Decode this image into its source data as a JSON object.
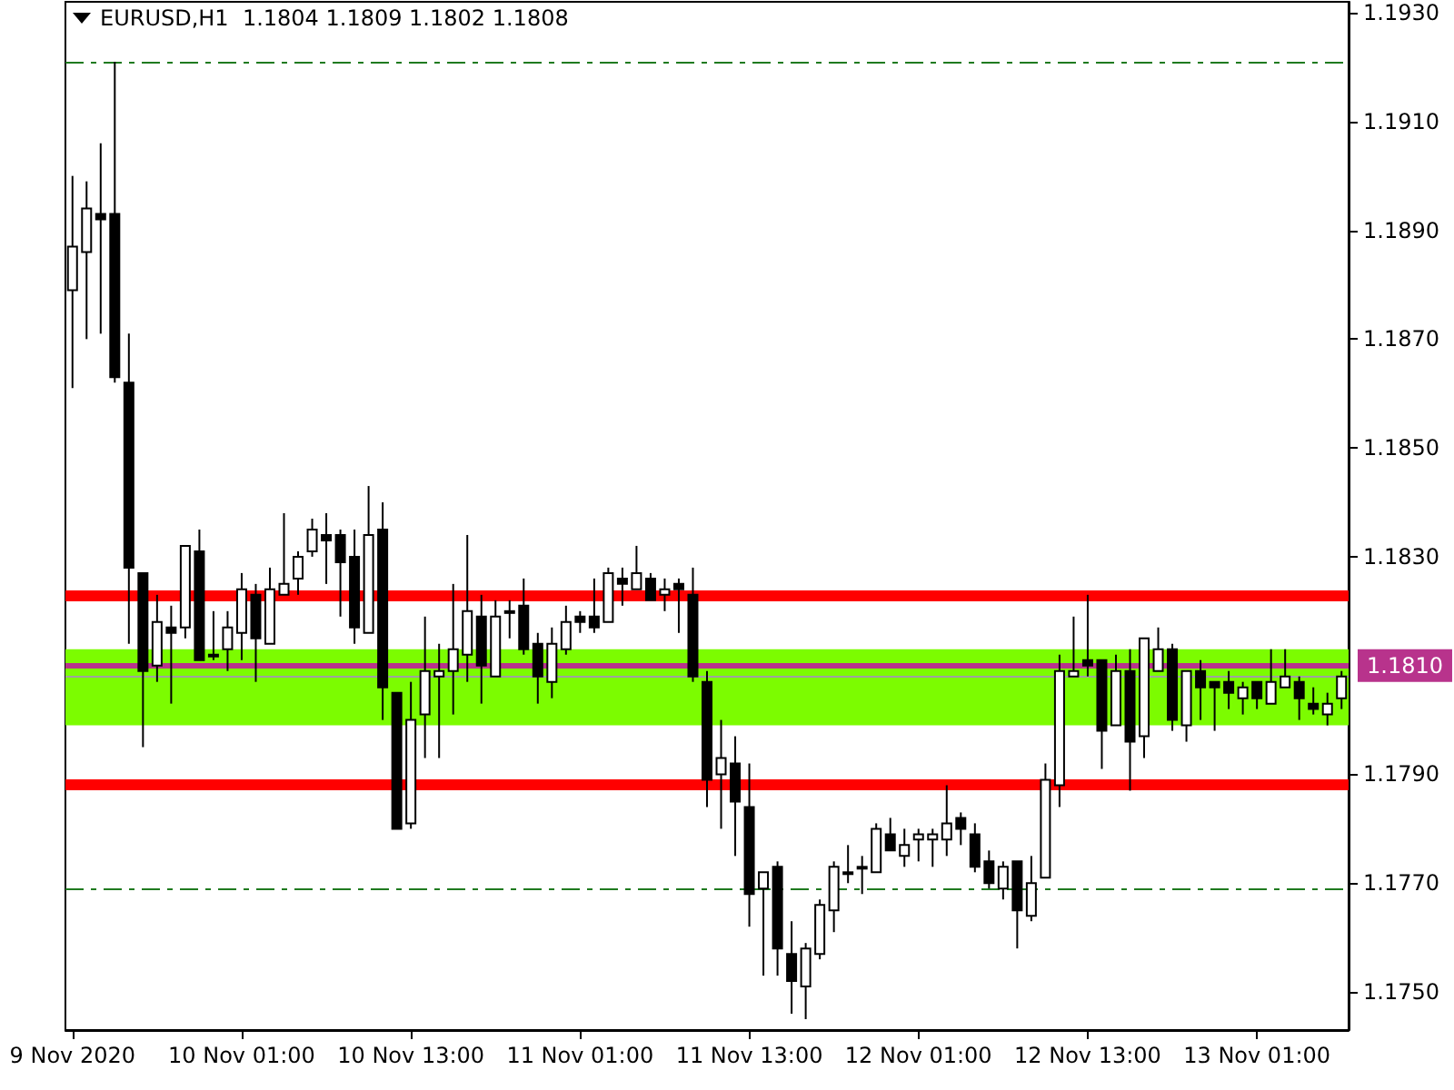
{
  "chart_data": {
    "type": "candlestick",
    "title": "EURUSD,H1  1.1804 1.1809 1.1802 1.1808",
    "color": "#000000",
    "categories": [
      "9 Nov 2020",
      null,
      null,
      null,
      null,
      null,
      null,
      null,
      null,
      null,
      null,
      null,
      "10 Nov 01:00",
      null,
      null,
      null,
      null,
      null,
      null,
      null,
      null,
      null,
      null,
      null,
      "10 Nov 13:00",
      null,
      null,
      null,
      null,
      null,
      null,
      null,
      null,
      null,
      null,
      null,
      "11 Nov 01:00",
      null,
      null,
      null,
      null,
      null,
      null,
      null,
      null,
      null,
      null,
      null,
      "11 Nov 13:00",
      null,
      null,
      null,
      null,
      null,
      null,
      null,
      null,
      null,
      null,
      null,
      "12 Nov 01:00",
      null,
      null,
      null,
      null,
      null,
      null,
      null,
      null,
      null,
      null,
      null,
      "12 Nov 13:00",
      null,
      null,
      null,
      null,
      null,
      null,
      null,
      null,
      null,
      null,
      null,
      "13 Nov 01:00",
      null,
      null,
      null,
      null,
      null,
      null
    ],
    "ohlc": [
      [
        1.1879,
        1.19,
        1.1861,
        1.1887
      ],
      [
        1.1886,
        1.1899,
        1.187,
        1.1894
      ],
      [
        1.1893,
        1.1906,
        1.1871,
        1.1892
      ],
      [
        1.1893,
        1.1921,
        1.1862,
        1.1863
      ],
      [
        1.1862,
        1.1871,
        1.1814,
        1.1828
      ],
      [
        1.1827,
        1.1827,
        1.1795,
        1.1809
      ],
      [
        1.181,
        1.1823,
        1.1807,
        1.1818
      ],
      [
        1.1817,
        1.1821,
        1.1803,
        1.1816
      ],
      [
        1.1817,
        1.1832,
        1.1815,
        1.1832
      ],
      [
        1.1831,
        1.1835,
        1.1811,
        1.1811
      ],
      [
        1.1812,
        1.182,
        1.1811,
        1.1812
      ],
      [
        1.1813,
        1.182,
        1.1809,
        1.1817
      ],
      [
        1.1816,
        1.1827,
        1.1811,
        1.1824
      ],
      [
        1.1823,
        1.1825,
        1.1807,
        1.1815
      ],
      [
        1.1814,
        1.1828,
        1.1814,
        1.1824
      ],
      [
        1.1823,
        1.1838,
        1.1823,
        1.1825
      ],
      [
        1.1826,
        1.1831,
        1.1823,
        1.183
      ],
      [
        1.1831,
        1.1837,
        1.183,
        1.1835
      ],
      [
        1.1834,
        1.1838,
        1.1825,
        1.1833
      ],
      [
        1.1834,
        1.1835,
        1.1819,
        1.1829
      ],
      [
        1.183,
        1.1835,
        1.1814,
        1.1817
      ],
      [
        1.1816,
        1.1843,
        1.1816,
        1.1834
      ],
      [
        1.1835,
        1.184,
        1.18,
        1.1806
      ],
      [
        1.1805,
        1.1805,
        1.178,
        1.178
      ],
      [
        1.1781,
        1.1807,
        1.178,
        1.18
      ],
      [
        1.1801,
        1.1819,
        1.1793,
        1.1809
      ],
      [
        1.1808,
        1.1814,
        1.1793,
        1.1809
      ],
      [
        1.1809,
        1.1825,
        1.1801,
        1.1813
      ],
      [
        1.1812,
        1.1834,
        1.1807,
        1.182
      ],
      [
        1.1819,
        1.1823,
        1.1803,
        1.181
      ],
      [
        1.1808,
        1.1822,
        1.1808,
        1.1819
      ],
      [
        1.182,
        1.1822,
        1.1815,
        1.182
      ],
      [
        1.1821,
        1.1826,
        1.1812,
        1.1813
      ],
      [
        1.1814,
        1.1816,
        1.1803,
        1.1808
      ],
      [
        1.1807,
        1.1817,
        1.1804,
        1.1814
      ],
      [
        1.1813,
        1.1821,
        1.1812,
        1.1818
      ],
      [
        1.1819,
        1.182,
        1.1816,
        1.1818
      ],
      [
        1.1819,
        1.1826,
        1.1816,
        1.1817
      ],
      [
        1.1818,
        1.1828,
        1.1818,
        1.1827
      ],
      [
        1.1826,
        1.1828,
        1.1821,
        1.1825
      ],
      [
        1.1824,
        1.1832,
        1.1824,
        1.1827
      ],
      [
        1.1826,
        1.1827,
        1.1822,
        1.1822
      ],
      [
        1.1823,
        1.1826,
        1.182,
        1.1824
      ],
      [
        1.1825,
        1.1826,
        1.1816,
        1.1824
      ],
      [
        1.1823,
        1.1828,
        1.1807,
        1.1808
      ],
      [
        1.1807,
        1.1809,
        1.1784,
        1.1789
      ],
      [
        1.179,
        1.18,
        1.178,
        1.1793
      ],
      [
        1.1792,
        1.1797,
        1.1775,
        1.1785
      ],
      [
        1.1784,
        1.1792,
        1.1762,
        1.1768
      ],
      [
        1.1769,
        1.1772,
        1.1753,
        1.1772
      ],
      [
        1.1773,
        1.1774,
        1.1753,
        1.1758
      ],
      [
        1.1757,
        1.1763,
        1.1746,
        1.1752
      ],
      [
        1.1751,
        1.1759,
        1.1745,
        1.1758
      ],
      [
        1.1757,
        1.1767,
        1.1756,
        1.1766
      ],
      [
        1.1765,
        1.1774,
        1.1761,
        1.1773
      ],
      [
        1.1772,
        1.1777,
        1.177,
        1.1772
      ],
      [
        1.1773,
        1.1775,
        1.1768,
        1.1773
      ],
      [
        1.1772,
        1.1781,
        1.1772,
        1.178
      ],
      [
        1.1779,
        1.1782,
        1.1776,
        1.1776
      ],
      [
        1.1775,
        1.178,
        1.1773,
        1.1777
      ],
      [
        1.1778,
        1.178,
        1.1774,
        1.1779
      ],
      [
        1.1778,
        1.178,
        1.1773,
        1.1779
      ],
      [
        1.1778,
        1.1788,
        1.1775,
        1.1781
      ],
      [
        1.1782,
        1.1783,
        1.1777,
        1.178
      ],
      [
        1.1779,
        1.1781,
        1.1772,
        1.1773
      ],
      [
        1.1774,
        1.1776,
        1.1769,
        1.177
      ],
      [
        1.1769,
        1.1774,
        1.1767,
        1.1773
      ],
      [
        1.1774,
        1.1774,
        1.1758,
        1.1765
      ],
      [
        1.1764,
        1.1775,
        1.1763,
        1.177
      ],
      [
        1.1771,
        1.1792,
        1.1771,
        1.1789
      ],
      [
        1.1788,
        1.1812,
        1.1784,
        1.1809
      ],
      [
        1.1808,
        1.1819,
        1.1808,
        1.1809
      ],
      [
        1.1811,
        1.1823,
        1.1808,
        1.181
      ],
      [
        1.1811,
        1.1811,
        1.1791,
        1.1798
      ],
      [
        1.1799,
        1.1812,
        1.1799,
        1.1809
      ],
      [
        1.1809,
        1.1813,
        1.1787,
        1.1796
      ],
      [
        1.1797,
        1.1815,
        1.1793,
        1.1815
      ],
      [
        1.1809,
        1.1817,
        1.1809,
        1.1813
      ],
      [
        1.1813,
        1.1814,
        1.1798,
        1.18
      ],
      [
        1.1799,
        1.1809,
        1.1796,
        1.1809
      ],
      [
        1.1809,
        1.1811,
        1.18,
        1.1806
      ],
      [
        1.1807,
        1.1807,
        1.1798,
        1.1806
      ],
      [
        1.1807,
        1.1809,
        1.1802,
        1.1805
      ],
      [
        1.1804,
        1.1807,
        1.1801,
        1.1806
      ],
      [
        1.1807,
        1.1807,
        1.1802,
        1.1804
      ],
      [
        1.1803,
        1.1813,
        1.1803,
        1.1807
      ],
      [
        1.1806,
        1.1813,
        1.1806,
        1.1808
      ],
      [
        1.1807,
        1.1808,
        1.18,
        1.1804
      ],
      [
        1.1803,
        1.1806,
        1.1801,
        1.1802
      ],
      [
        1.1801,
        1.1805,
        1.1799,
        1.1803
      ],
      [
        1.1804,
        1.1809,
        1.1802,
        1.1808
      ]
    ],
    "ylim": [
      1.1743,
      1.1932
    ],
    "yticks": [
      {
        "value": 1.175,
        "label": "1.1750"
      },
      {
        "value": 1.177,
        "label": "1.1770"
      },
      {
        "value": 1.179,
        "label": "1.1790"
      },
      {
        "value": 1.183,
        "label": "1.1830"
      },
      {
        "value": 1.185,
        "label": "1.1850"
      },
      {
        "value": 1.187,
        "label": "1.1870"
      },
      {
        "value": 1.189,
        "label": "1.1890"
      },
      {
        "value": 1.191,
        "label": "1.1910"
      },
      {
        "value": 1.193,
        "label": "1.1930"
      }
    ],
    "ref_lines": [
      {
        "axis": "y",
        "value": 1.1921,
        "color": "#1f7a1f",
        "line_style": "dashed"
      },
      {
        "axis": "y",
        "value": 1.1769,
        "color": "#1f7a1f",
        "line_style": "dashed"
      },
      {
        "axis": "y",
        "value": 1.1823,
        "color": "#ff0000"
      },
      {
        "axis": "y",
        "value": 1.1788,
        "color": "#ff0000"
      },
      {
        "axis": "y",
        "value": 1.1808,
        "color": "#a0a0a0"
      },
      {
        "axis": "y",
        "value": 1.181,
        "label": "1.1810",
        "color": "#b8338c"
      }
    ],
    "bands": [
      {
        "axis": "y",
        "from": 1.1799,
        "to": 1.1813,
        "color": "#7cfc00"
      }
    ]
  }
}
